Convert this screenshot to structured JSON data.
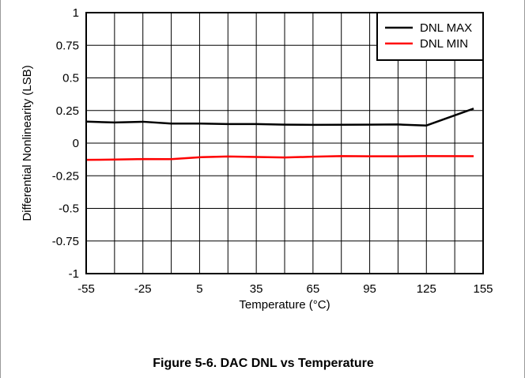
{
  "figure": {
    "caption": "Figure 5-6. DAC DNL vs Temperature"
  },
  "chart_data": {
    "type": "line",
    "xlabel": "Temperature (°C)",
    "ylabel": "Differential Nonlinearity (LSB)",
    "xlim": [
      -55,
      155
    ],
    "ylim": [
      -1,
      1
    ],
    "x_ticks": [
      -55,
      -25,
      5,
      35,
      65,
      95,
      125,
      155
    ],
    "x_tick_labels": [
      "-55",
      "-25",
      "5",
      "35",
      "65",
      "95",
      "125",
      "155"
    ],
    "x_gridlines": [
      -55,
      -40,
      -25,
      -10,
      5,
      20,
      35,
      50,
      65,
      80,
      95,
      110,
      125,
      140,
      155
    ],
    "y_ticks": [
      1,
      0.75,
      0.5,
      0.25,
      0,
      -0.25,
      -0.5,
      -0.75,
      -1
    ],
    "y_tick_labels": [
      "1",
      "0.75",
      "0.5",
      "0.25",
      "0",
      "-0.25",
      "-0.5",
      "-0.75",
      "-1"
    ],
    "grid": true,
    "legend_position": "top-right",
    "series": [
      {
        "name": "DNL MAX",
        "color": "#000000",
        "x": [
          -55,
          -40,
          -25,
          -10,
          5,
          20,
          35,
          50,
          65,
          80,
          95,
          110,
          125,
          150
        ],
        "y": [
          0.165,
          0.158,
          0.164,
          0.15,
          0.15,
          0.146,
          0.146,
          0.142,
          0.14,
          0.141,
          0.142,
          0.143,
          0.135,
          0.265
        ]
      },
      {
        "name": "DNL MIN",
        "color": "#ff0000",
        "x": [
          -55,
          -40,
          -25,
          -10,
          5,
          20,
          35,
          50,
          65,
          80,
          95,
          110,
          125,
          150
        ],
        "y": [
          -0.128,
          -0.126,
          -0.122,
          -0.123,
          -0.108,
          -0.102,
          -0.106,
          -0.11,
          -0.104,
          -0.099,
          -0.101,
          -0.101,
          -0.099,
          -0.1
        ]
      }
    ]
  }
}
